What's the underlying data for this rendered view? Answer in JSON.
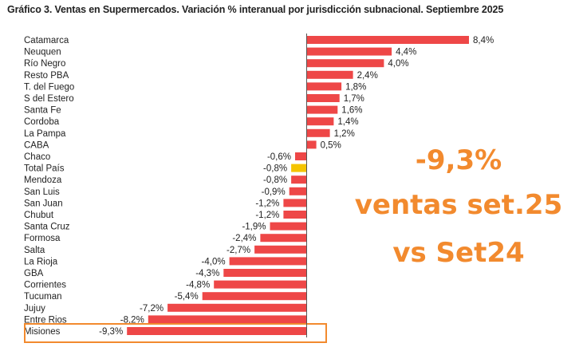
{
  "colors": {
    "bar": "#ee4747",
    "highlight_bar": "#f5c400",
    "axis": "#555555",
    "annotation": "#f28a2e",
    "highlight_box": "#f28a2e"
  },
  "chart_data": {
    "type": "bar",
    "orientation": "horizontal",
    "title": "Gráfico 3. Ventas en Supermercados. Variación % interanual por jurisdicción subnacional. Septiembre 2025",
    "categories": [
      "Catamarca",
      "Neuquen",
      "Río Negro",
      "Resto PBA",
      "T. del Fuego",
      "S del Estero",
      "Santa Fe",
      "Cordoba",
      "La Pampa",
      "CABA",
      "Chaco",
      "Total País",
      "Mendoza",
      "San Luis",
      "San Juan",
      "Chubut",
      "Santa Cruz",
      "Formosa",
      "Salta",
      "La Rioja",
      "GBA",
      "Corrientes",
      "Tucuman",
      "Jujuy",
      "Entre Rios",
      "Misiones"
    ],
    "values": [
      8.4,
      4.4,
      4.0,
      2.4,
      1.8,
      1.7,
      1.6,
      1.4,
      1.2,
      0.5,
      -0.6,
      -0.8,
      -0.8,
      -0.9,
      -1.2,
      -1.2,
      -1.9,
      -2.4,
      -2.7,
      -4.0,
      -4.3,
      -4.8,
      -5.4,
      -7.2,
      -8.2,
      -9.3
    ],
    "value_labels": [
      "8,4%",
      "4,4%",
      "4,0%",
      "2,4%",
      "1,8%",
      "1,7%",
      "1,6%",
      "1,4%",
      "1,2%",
      "0,5%",
      "-0,6%",
      "-0,8%",
      "-0,8%",
      "-0,9%",
      "-1,2%",
      "-1,2%",
      "-1,9%",
      "-2,4%",
      "-2,7%",
      "-4,0%",
      "-4,3%",
      "-4,8%",
      "-5,4%",
      "-7,2%",
      "-8,2%",
      "-9,3%"
    ],
    "highlight_category": "Total País",
    "boxed_category": "Misiones",
    "xlim": [
      -9.3,
      8.4
    ],
    "grid": false,
    "legend": "none",
    "annotation": {
      "lines": [
        "-9,3%",
        "ventas set.25",
        "vs Set24"
      ]
    }
  }
}
